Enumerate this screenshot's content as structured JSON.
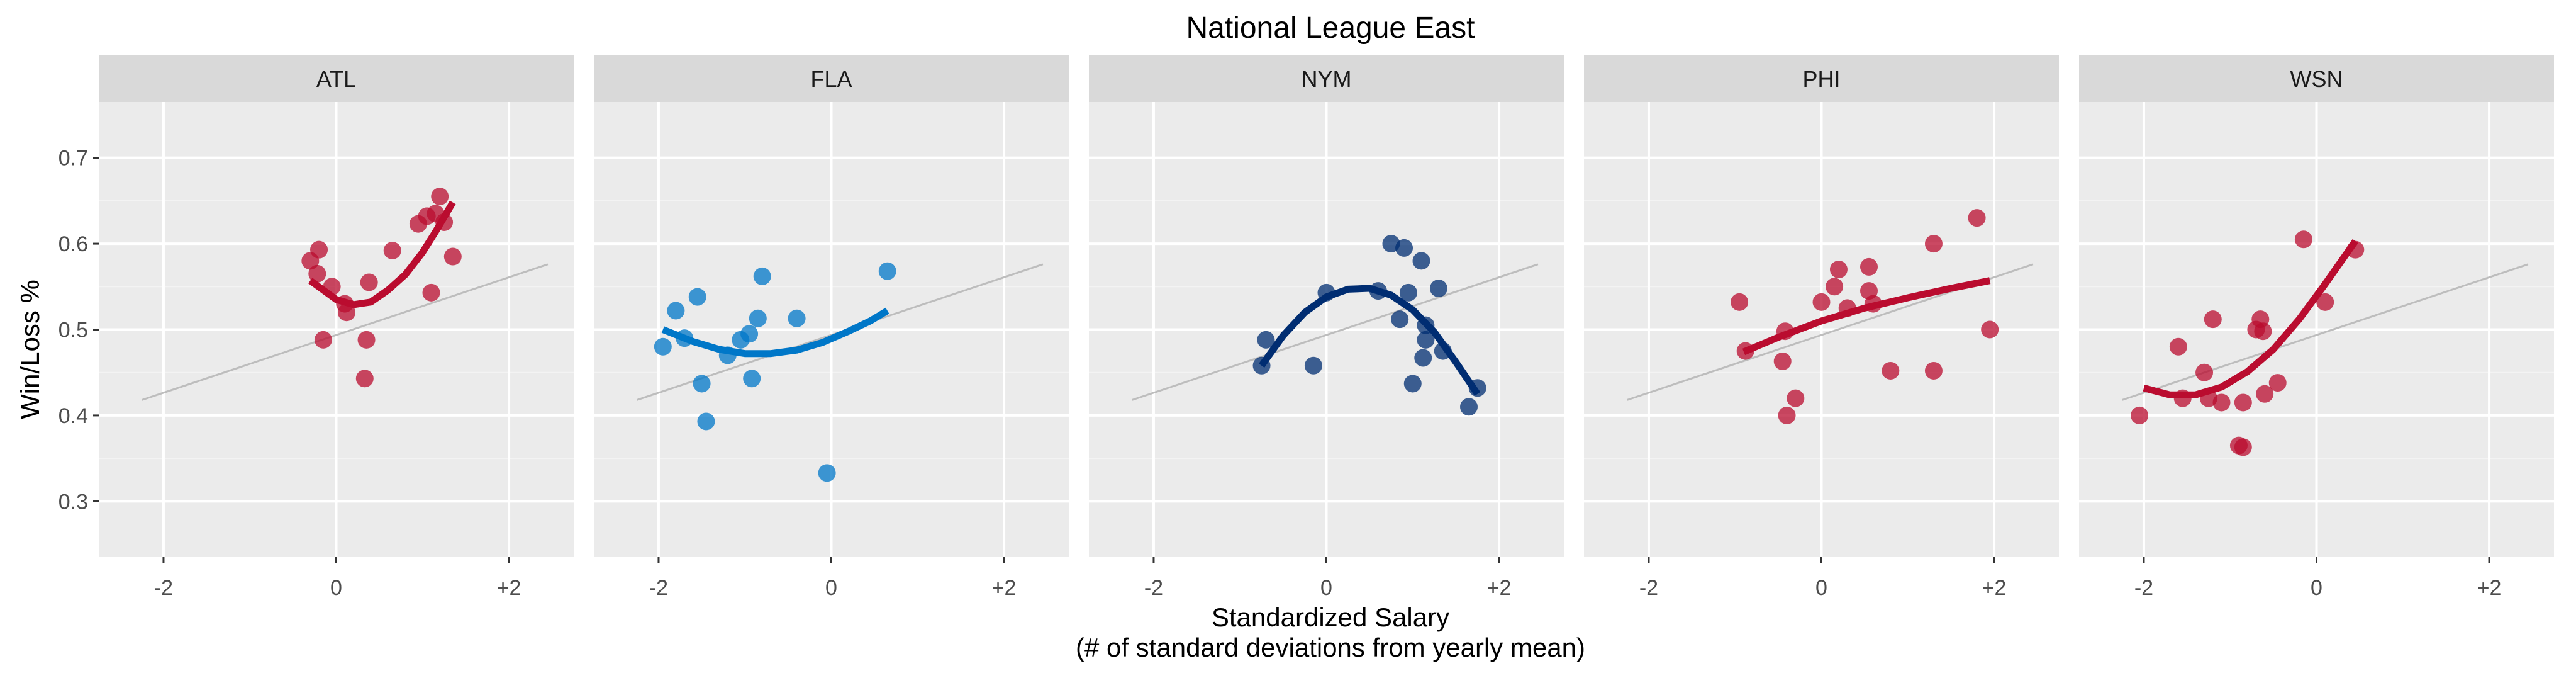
{
  "colors": {
    "panel_bg": "#EBEBEB",
    "strip_bg": "#D9D9D9",
    "grid_major": "#FFFFFF",
    "grid_minor": "#F3F3F3",
    "reference_line": "#BDBDBD",
    "axis_text": "#4D4D4D",
    "title_text": "#000000"
  },
  "chart_data": {
    "type": "scatter",
    "title": "National League East",
    "xlabel": "Standardized Salary",
    "xlabel_sub": "(# of standard deviations from yearly mean)",
    "ylabel": "Win/Loss %",
    "xlim": [
      -2.75,
      2.75
    ],
    "ylim": [
      0.235,
      0.765
    ],
    "x_ticks": [
      -2,
      0,
      2
    ],
    "x_tick_labels": [
      "-2",
      "0",
      "+2"
    ],
    "y_ticks": [
      0.3,
      0.4,
      0.5,
      0.6,
      0.7
    ],
    "y_tick_labels": [
      "0.3",
      "0.4",
      "0.5",
      "0.6",
      "0.7"
    ],
    "grid": true,
    "reference_line": {
      "x": [
        -2.25,
        2.45
      ],
      "y": [
        0.418,
        0.576
      ]
    },
    "facets": [
      {
        "name": "ATL",
        "color": "#BA0C2F",
        "points": [
          {
            "x": -0.3,
            "y": 0.58
          },
          {
            "x": -0.2,
            "y": 0.593
          },
          {
            "x": -0.22,
            "y": 0.565
          },
          {
            "x": -0.05,
            "y": 0.55
          },
          {
            "x": -0.15,
            "y": 0.488
          },
          {
            "x": 0.1,
            "y": 0.53
          },
          {
            "x": 0.12,
            "y": 0.52
          },
          {
            "x": 0.38,
            "y": 0.555
          },
          {
            "x": 0.35,
            "y": 0.488
          },
          {
            "x": 0.33,
            "y": 0.443
          },
          {
            "x": 0.65,
            "y": 0.592
          },
          {
            "x": 0.95,
            "y": 0.623
          },
          {
            "x": 1.05,
            "y": 0.632
          },
          {
            "x": 1.1,
            "y": 0.543
          },
          {
            "x": 1.15,
            "y": 0.635
          },
          {
            "x": 1.2,
            "y": 0.655
          },
          {
            "x": 1.25,
            "y": 0.625
          },
          {
            "x": 1.35,
            "y": 0.585
          }
        ],
        "smooth": {
          "x": [
            -0.3,
            0.0,
            0.2,
            0.4,
            0.6,
            0.8,
            1.0,
            1.15,
            1.35
          ],
          "y": [
            0.557,
            0.535,
            0.529,
            0.532,
            0.546,
            0.564,
            0.59,
            0.614,
            0.648
          ]
        }
      },
      {
        "name": "FLA",
        "color": "#0077C8",
        "points": [
          {
            "x": -1.95,
            "y": 0.48
          },
          {
            "x": -1.8,
            "y": 0.522
          },
          {
            "x": -1.7,
            "y": 0.49
          },
          {
            "x": -1.55,
            "y": 0.538
          },
          {
            "x": -1.5,
            "y": 0.437
          },
          {
            "x": -1.45,
            "y": 0.393
          },
          {
            "x": -1.2,
            "y": 0.47
          },
          {
            "x": -1.05,
            "y": 0.488
          },
          {
            "x": -0.95,
            "y": 0.495
          },
          {
            "x": -0.92,
            "y": 0.443
          },
          {
            "x": -0.85,
            "y": 0.513
          },
          {
            "x": -0.8,
            "y": 0.562
          },
          {
            "x": -0.4,
            "y": 0.513
          },
          {
            "x": -0.05,
            "y": 0.333
          },
          {
            "x": 0.65,
            "y": 0.568
          }
        ],
        "smooth": {
          "x": [
            -1.95,
            -1.6,
            -1.3,
            -1.0,
            -0.7,
            -0.4,
            -0.1,
            0.2,
            0.45,
            0.65
          ],
          "y": [
            0.5,
            0.486,
            0.477,
            0.472,
            0.472,
            0.476,
            0.485,
            0.498,
            0.51,
            0.522
          ]
        }
      },
      {
        "name": "NYM",
        "color": "#002D72",
        "points": [
          {
            "x": -0.75,
            "y": 0.458
          },
          {
            "x": -0.7,
            "y": 0.488
          },
          {
            "x": -0.15,
            "y": 0.458
          },
          {
            "x": 0.0,
            "y": 0.543
          },
          {
            "x": 0.6,
            "y": 0.545
          },
          {
            "x": 0.75,
            "y": 0.6
          },
          {
            "x": 0.85,
            "y": 0.512
          },
          {
            "x": 0.9,
            "y": 0.595
          },
          {
            "x": 0.95,
            "y": 0.543
          },
          {
            "x": 1.0,
            "y": 0.437
          },
          {
            "x": 1.1,
            "y": 0.58
          },
          {
            "x": 1.15,
            "y": 0.505
          },
          {
            "x": 1.15,
            "y": 0.488
          },
          {
            "x": 1.12,
            "y": 0.467
          },
          {
            "x": 1.3,
            "y": 0.548
          },
          {
            "x": 1.35,
            "y": 0.475
          },
          {
            "x": 1.65,
            "y": 0.41
          },
          {
            "x": 1.75,
            "y": 0.432
          }
        ],
        "smooth": {
          "x": [
            -0.75,
            -0.5,
            -0.25,
            0.0,
            0.25,
            0.5,
            0.75,
            1.0,
            1.25,
            1.5,
            1.75
          ],
          "y": [
            0.458,
            0.493,
            0.52,
            0.538,
            0.547,
            0.548,
            0.54,
            0.523,
            0.497,
            0.462,
            0.425
          ]
        }
      },
      {
        "name": "PHI",
        "color": "#BA0C2F",
        "points": [
          {
            "x": -0.95,
            "y": 0.532
          },
          {
            "x": -0.88,
            "y": 0.475
          },
          {
            "x": -0.45,
            "y": 0.463
          },
          {
            "x": -0.42,
            "y": 0.498
          },
          {
            "x": -0.4,
            "y": 0.4
          },
          {
            "x": -0.3,
            "y": 0.42
          },
          {
            "x": 0.0,
            "y": 0.532
          },
          {
            "x": 0.15,
            "y": 0.55
          },
          {
            "x": 0.2,
            "y": 0.57
          },
          {
            "x": 0.3,
            "y": 0.525
          },
          {
            "x": 0.55,
            "y": 0.573
          },
          {
            "x": 0.55,
            "y": 0.545
          },
          {
            "x": 0.6,
            "y": 0.53
          },
          {
            "x": 0.8,
            "y": 0.452
          },
          {
            "x": 1.3,
            "y": 0.6
          },
          {
            "x": 1.3,
            "y": 0.452
          },
          {
            "x": 1.8,
            "y": 0.63
          },
          {
            "x": 1.95,
            "y": 0.5
          }
        ],
        "smooth": {
          "x": [
            -0.9,
            -0.5,
            0.0,
            0.5,
            1.0,
            1.5,
            1.95
          ],
          "y": [
            0.474,
            0.491,
            0.51,
            0.525,
            0.537,
            0.548,
            0.557
          ]
        }
      },
      {
        "name": "WSN",
        "color": "#BA0C2F",
        "points": [
          {
            "x": -2.05,
            "y": 0.4
          },
          {
            "x": -1.6,
            "y": 0.48
          },
          {
            "x": -1.55,
            "y": 0.42
          },
          {
            "x": -1.3,
            "y": 0.45
          },
          {
            "x": -1.25,
            "y": 0.42
          },
          {
            "x": -1.2,
            "y": 0.512
          },
          {
            "x": -1.1,
            "y": 0.415
          },
          {
            "x": -0.9,
            "y": 0.365
          },
          {
            "x": -0.85,
            "y": 0.363
          },
          {
            "x": -0.85,
            "y": 0.415
          },
          {
            "x": -0.7,
            "y": 0.5
          },
          {
            "x": -0.65,
            "y": 0.512
          },
          {
            "x": -0.6,
            "y": 0.425
          },
          {
            "x": -0.62,
            "y": 0.498
          },
          {
            "x": -0.45,
            "y": 0.438
          },
          {
            "x": -0.15,
            "y": 0.605
          },
          {
            "x": 0.1,
            "y": 0.532
          },
          {
            "x": 0.45,
            "y": 0.593
          }
        ],
        "smooth": {
          "x": [
            -2.0,
            -1.7,
            -1.4,
            -1.1,
            -0.8,
            -0.5,
            -0.2,
            0.1,
            0.45
          ],
          "y": [
            0.432,
            0.424,
            0.424,
            0.433,
            0.451,
            0.477,
            0.512,
            0.553,
            0.603
          ]
        }
      }
    ]
  }
}
